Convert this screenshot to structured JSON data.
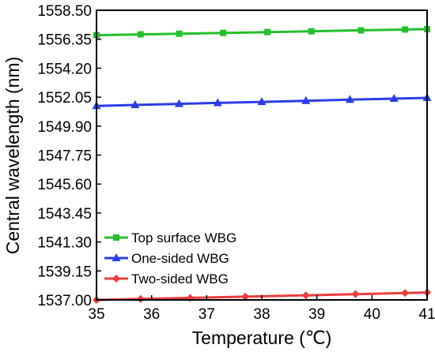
{
  "chart_data": {
    "type": "line",
    "title": "",
    "xlabel": "Temperature (℃)",
    "ylabel": "Central wavelength (nm)",
    "xlim": [
      35,
      41
    ],
    "ylim": [
      1537.0,
      1558.5
    ],
    "x_ticks": [
      "35",
      "36",
      "37",
      "38",
      "39",
      "40",
      "41"
    ],
    "y_ticks": [
      "1537.00",
      "1539.15",
      "1541.30",
      "1543.45",
      "1545.60",
      "1547.75",
      "1549.90",
      "1552.05",
      "1554.20",
      "1556.35",
      "1558.50"
    ],
    "grid": false,
    "legend_position": "bottom-left",
    "series": [
      {
        "name": "Top surface WBG",
        "color": "#22c02a",
        "marker": "square",
        "x": [
          35.0,
          35.8,
          36.5,
          37.3,
          38.1,
          38.9,
          39.8,
          40.6,
          41.0
        ],
        "y": [
          1556.65,
          1556.71,
          1556.76,
          1556.82,
          1556.88,
          1556.94,
          1557.01,
          1557.07,
          1557.1
        ]
      },
      {
        "name": "One-sided WBG",
        "color": "#2c3ce8",
        "marker": "triangle",
        "x": [
          35.0,
          35.7,
          36.5,
          37.2,
          38.0,
          38.8,
          39.6,
          40.4,
          41.0
        ],
        "y": [
          1551.4,
          1551.47,
          1551.55,
          1551.62,
          1551.7,
          1551.78,
          1551.86,
          1551.94,
          1552.0
        ]
      },
      {
        "name": "Two-sided WBG",
        "color": "#ee3b3b",
        "marker": "diamond",
        "x": [
          35.0,
          35.8,
          36.7,
          37.7,
          38.8,
          39.7,
          40.6,
          41.0
        ],
        "y": [
          1537.0,
          1537.07,
          1537.15,
          1537.24,
          1537.34,
          1537.43,
          1537.51,
          1537.55
        ]
      }
    ]
  }
}
